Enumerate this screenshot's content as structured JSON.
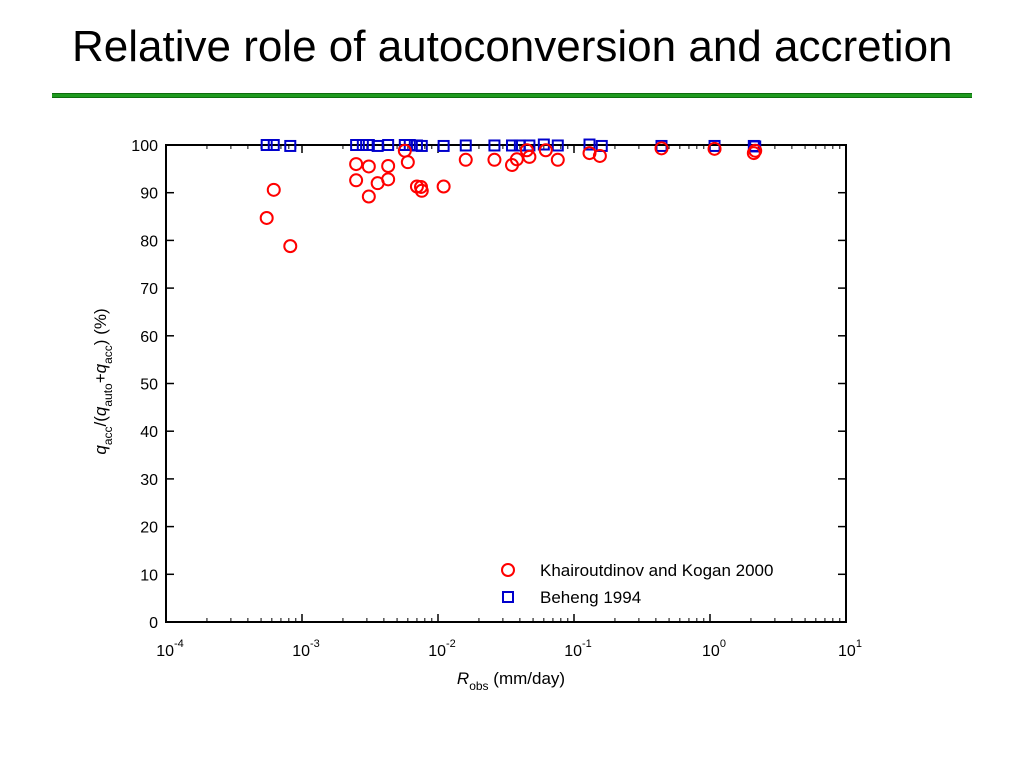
{
  "slide": {
    "title": "Relative role of autoconversion and accretion",
    "accent_color": "#1f9a1f"
  },
  "chart_data": {
    "type": "scatter",
    "title": "",
    "xlabel": {
      "main": "R",
      "sub": "obs",
      "tail": " (mm/day)"
    },
    "ylabel": {
      "parts": [
        {
          "t": "q",
          "italic": true
        },
        {
          "t": "acc",
          "sub": true
        },
        {
          "t": "/("
        },
        {
          "t": "q",
          "italic": true
        },
        {
          "t": "auto",
          "sub": true
        },
        {
          "t": "+"
        },
        {
          "t": "q",
          "italic": true
        },
        {
          "t": "acc",
          "sub": true
        },
        {
          "t": ") (%)"
        }
      ]
    },
    "x_scale": "log",
    "xlim": [
      0.0001,
      10
    ],
    "ylim": [
      0,
      100
    ],
    "x_ticks": [
      {
        "value": 0.0001,
        "base": "10",
        "exp": "-4"
      },
      {
        "value": 0.001,
        "base": "10",
        "exp": "-3"
      },
      {
        "value": 0.01,
        "base": "10",
        "exp": "-2"
      },
      {
        "value": 0.1,
        "base": "10",
        "exp": "-1"
      },
      {
        "value": 1,
        "base": "10",
        "exp": "0"
      },
      {
        "value": 10,
        "base": "10",
        "exp": "1"
      }
    ],
    "y_ticks": [
      0,
      10,
      20,
      30,
      40,
      50,
      60,
      70,
      80,
      90,
      100
    ],
    "grid": false,
    "legend_position": "bottom-right",
    "series": [
      {
        "name": "Khairoutdinov and Kogan 2000",
        "marker": "circle",
        "color": "#ff0000",
        "points": [
          [
            0.00055,
            84.7
          ],
          [
            0.00062,
            90.6
          ],
          [
            0.00082,
            78.8
          ],
          [
            0.0025,
            96.0
          ],
          [
            0.0025,
            92.6
          ],
          [
            0.0031,
            95.5
          ],
          [
            0.0031,
            89.2
          ],
          [
            0.0036,
            92.0
          ],
          [
            0.0043,
            95.6
          ],
          [
            0.0043,
            92.8
          ],
          [
            0.0057,
            98.8
          ],
          [
            0.006,
            96.4
          ],
          [
            0.007,
            91.3
          ],
          [
            0.0075,
            91.2
          ],
          [
            0.0076,
            90.4
          ],
          [
            0.011,
            91.3
          ],
          [
            0.016,
            96.9
          ],
          [
            0.026,
            96.9
          ],
          [
            0.035,
            95.8
          ],
          [
            0.038,
            97.0
          ],
          [
            0.045,
            98.9
          ],
          [
            0.047,
            97.5
          ],
          [
            0.062,
            98.9
          ],
          [
            0.076,
            96.9
          ],
          [
            0.13,
            98.3
          ],
          [
            0.155,
            97.7
          ],
          [
            0.44,
            99.3
          ],
          [
            1.08,
            99.2
          ],
          [
            2.1,
            98.3
          ],
          [
            2.15,
            98.8
          ]
        ]
      },
      {
        "name": "Beheng 1994",
        "marker": "square",
        "color": "#0000cc",
        "points": [
          [
            0.00055,
            100
          ],
          [
            0.00062,
            100
          ],
          [
            0.00082,
            99.8
          ],
          [
            0.0025,
            100
          ],
          [
            0.0028,
            100
          ],
          [
            0.0031,
            100
          ],
          [
            0.0036,
            99.8
          ],
          [
            0.0043,
            100
          ],
          [
            0.0057,
            100
          ],
          [
            0.0062,
            100
          ],
          [
            0.007,
            99.9
          ],
          [
            0.0076,
            99.8
          ],
          [
            0.011,
            99.8
          ],
          [
            0.016,
            99.9
          ],
          [
            0.026,
            99.9
          ],
          [
            0.035,
            99.9
          ],
          [
            0.04,
            99.9
          ],
          [
            0.047,
            99.9
          ],
          [
            0.06,
            100.1
          ],
          [
            0.076,
            99.9
          ],
          [
            0.13,
            100.1
          ],
          [
            0.16,
            99.8
          ],
          [
            0.44,
            99.8
          ],
          [
            1.08,
            99.8
          ],
          [
            2.1,
            99.8
          ],
          [
            2.15,
            99.7
          ]
        ]
      }
    ]
  }
}
